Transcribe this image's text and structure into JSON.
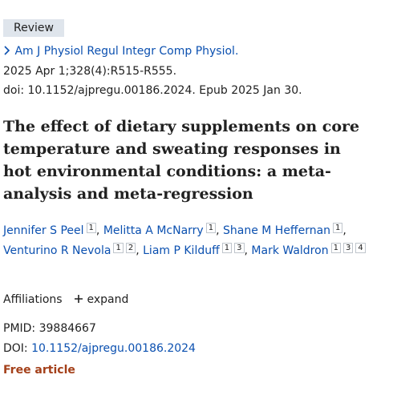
{
  "badge": "Review",
  "journal": {
    "name": "Am J Physiol Regul Integr Comp Physiol.",
    "citation": "2025 Apr 1;328(4):R515-R555.",
    "doi_line": "doi: 10.1152/ajpregu.00186.2024. Epub 2025 Jan 30."
  },
  "title": "The effect of dietary supplements on core temperature and sweating responses in hot environmental conditions: a meta-analysis and meta-regression",
  "authors": [
    {
      "name": "Jennifer S Peel",
      "affiliations": [
        "1"
      ],
      "separator": ","
    },
    {
      "name": "Melitta A McNarry",
      "affiliations": [
        "1"
      ],
      "separator": ","
    },
    {
      "name": "Shane M Heffernan",
      "affiliations": [
        "1"
      ],
      "separator": ","
    },
    {
      "name": "Venturino R Nevola",
      "affiliations": [
        "1",
        "2"
      ],
      "separator": ","
    },
    {
      "name": "Liam P Kilduff",
      "affiliations": [
        "1",
        "3"
      ],
      "separator": ","
    },
    {
      "name": "Mark Waldron",
      "affiliations": [
        "1",
        "3",
        "4"
      ]
    }
  ],
  "affiliations": {
    "label": "Affiliations",
    "toggle": "expand"
  },
  "identifiers": {
    "pmid_label": "PMID:",
    "pmid": "39884667",
    "doi_label": "DOI:",
    "doi": "10.1152/ajpregu.00186.2024"
  },
  "free": "Free article"
}
